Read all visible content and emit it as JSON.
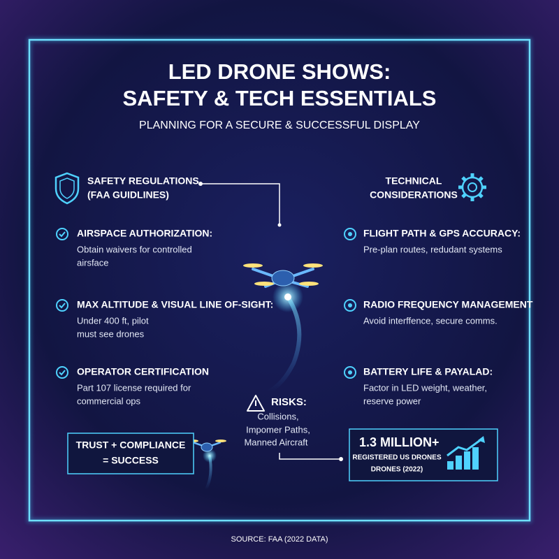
{
  "header": {
    "title": [
      "LED DRONE SHOWS:",
      "SAFETY & TECH ESSENTIALS"
    ],
    "subtitle": "PLANNING FOR A SECURE & SUCCESSFUL DISPLAY"
  },
  "safety": {
    "heading": [
      "SAFETY REGULATIONS",
      "(FAA GUIDLINES)"
    ],
    "items": [
      {
        "title": "AIRSPACE AUTHORIZATION:",
        "description": [
          "Obtain waivers for controlled",
          "airsface"
        ]
      },
      {
        "title": "MAX ALTITUDE & VISUAL LINE OF-SIGHT:",
        "description": [
          "Under 400 ft, pilot",
          "must see drones"
        ]
      },
      {
        "title": "OPERATOR CERTIFICATION",
        "description": [
          "Part 107 license required for",
          "commercial ops"
        ]
      }
    ]
  },
  "technical": {
    "heading": [
      "TECHNICAL",
      "CONSIDERATIONS"
    ],
    "items": [
      {
        "title": "FLIGHT PATH & GPS ACCURACY:",
        "description": [
          "Pre-plan routes, redudant systems"
        ]
      },
      {
        "title": "RADIO FREQUENCY MANAGEMENT",
        "description": [
          "Avoid interffence, secure comms."
        ]
      },
      {
        "title": "BATTERY LIFE & PAYALAD:",
        "description": [
          "Factor in LED weight, weather,",
          "reserve power"
        ]
      }
    ]
  },
  "risks": {
    "title": "RISKS:",
    "lines": [
      "Collisions,",
      "Impomer Paths,",
      "Manned Aircraft"
    ]
  },
  "callout": [
    "TRUST + COMPLIANCE",
    "= SUCCESS"
  ],
  "stat": {
    "value": "1.3 MILLION+",
    "lines": [
      "REGISTERED US DRONES",
      "DRONES (2022)"
    ]
  },
  "footer": "SOURCE: FAA (2022 DATA)"
}
